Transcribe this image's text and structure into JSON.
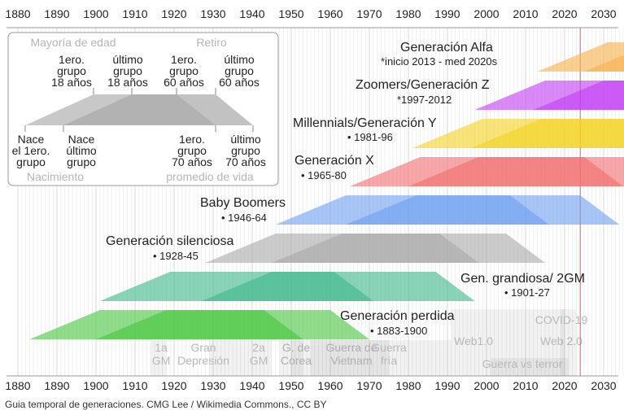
{
  "axis": {
    "start": 1880,
    "end": 2030,
    "step": 10,
    "labels": [
      "1880",
      "1890",
      "1900",
      "1910",
      "1920",
      "1930",
      "1940",
      "1950",
      "1960",
      "1970",
      "1980",
      "1990",
      "2000",
      "2010",
      "2020",
      "2030"
    ]
  },
  "current_year_marker": 2024,
  "generations": [
    {
      "name": "Generación Alfa",
      "range": "*inicio 2013 - med 2020s",
      "start": 2013,
      "end": 2025,
      "color": "#f5b04a"
    },
    {
      "name": "Zoomers/Generación Z",
      "range": "*1997-2012",
      "start": 1997,
      "end": 2012,
      "color": "#c23cf2"
    },
    {
      "name": "Millennials/Generación Y",
      "range": "• 1981-96",
      "start": 1981,
      "end": 1996,
      "color": "#f4d21e"
    },
    {
      "name": "Generación X",
      "range": "• 1965-80",
      "start": 1965,
      "end": 1980,
      "color": "#f26d6d"
    },
    {
      "name": "Baby Boomers",
      "range": "• 1946-64",
      "start": 1946,
      "end": 1964,
      "color": "#6d9ff0"
    },
    {
      "name": "Generación silenciosa",
      "range": "• 1928-45",
      "start": 1928,
      "end": 1945,
      "color": "#a8a8a8"
    },
    {
      "name": "Gen. grandiosa/ 2GM",
      "range": "• 1901-27",
      "start": 1901,
      "end": 1927,
      "color": "#3bb88a"
    },
    {
      "name": "Generación perdida",
      "range": "• 1883-1900",
      "start": 1883,
      "end": 1900,
      "color": "#44c63c"
    }
  ],
  "events": [
    {
      "lines": [
        "1a",
        "GM"
      ],
      "start": 1914,
      "end": 1918
    },
    {
      "lines": [
        "Gran",
        "Depresión"
      ],
      "start": 1929,
      "end": 1939
    },
    {
      "lines": [
        "2a",
        "GM"
      ],
      "start": 1939,
      "end": 1945
    },
    {
      "lines": [
        "G. de",
        "Corea"
      ],
      "start": 1950,
      "end": 1953
    },
    {
      "lines": [
        "Guerra de",
        "Vietnam"
      ],
      "start": 1955,
      "end": 1975
    },
    {
      "lines": [
        "Guerra",
        "fría"
      ],
      "start": 1947,
      "end": 1991
    },
    {
      "lines": [
        "Web1.0"
      ],
      "start": 1991,
      "end": 2004
    },
    {
      "lines": [
        "Web 2.0"
      ],
      "start": 2004,
      "end": 2020
    },
    {
      "lines": [
        "COVID-19"
      ],
      "start": 2019,
      "end": 2023
    },
    {
      "lines": [
        "Guerra vs terror"
      ],
      "start": 2001,
      "end": 2021
    }
  ],
  "legend": {
    "top_left": "Mayoría de edad",
    "top_right": "Retiro",
    "bottom_left": "Nacimiento",
    "bottom_right": "promedio de vida",
    "top_labels": [
      [
        "1ero.",
        "grupo",
        "18 años"
      ],
      [
        "último",
        "grupo",
        "18 años"
      ],
      [
        "1ero.",
        "grupo",
        "60 años"
      ],
      [
        "último",
        "grupo",
        "60 años"
      ]
    ],
    "bottom_labels": [
      [
        "Nace",
        "el 1ero.",
        "grupo"
      ],
      [
        "Nace",
        "último",
        "grupo"
      ],
      [
        "1ero.",
        "grupo",
        "70 años"
      ],
      [
        "último",
        "grupo",
        "70 años"
      ]
    ]
  },
  "caption": "Guia temporal de generaciones. CMG Lee / Wikimedia Commons., CC BY"
}
